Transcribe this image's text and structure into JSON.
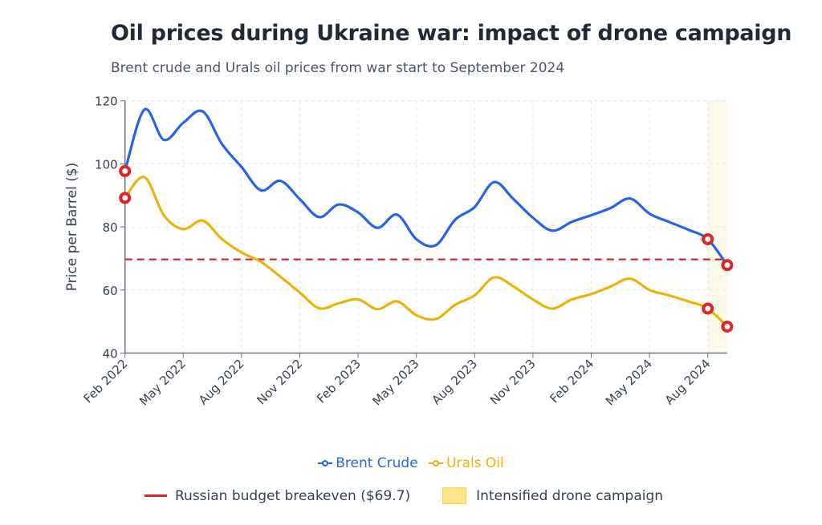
{
  "title": "Oil prices during Ukraine war: impact of drone campaign",
  "subtitle": "Brent crude and Urals oil prices from war start to September 2024",
  "chart_data": {
    "type": "line",
    "ylabel": "Price per Barrel ($)",
    "ylim": [
      40,
      120
    ],
    "yticks": [
      "40",
      "60",
      "80",
      "100",
      "120"
    ],
    "grid": true,
    "x": [
      "Feb 2022",
      "Mar 2022",
      "Apr 2022",
      "May 2022",
      "Jun 2022",
      "Jul 2022",
      "Aug 2022",
      "Sep 2022",
      "Oct 2022",
      "Nov 2022",
      "Dec 2022",
      "Jan 2023",
      "Feb 2023",
      "Mar 2023",
      "Apr 2023",
      "May 2023",
      "Jun 2023",
      "Jul 2023",
      "Aug 2023",
      "Sep 2023",
      "Oct 2023",
      "Nov 2023",
      "Dec 2023",
      "Jan 2024",
      "Feb 2024",
      "Mar 2024",
      "Apr 2024",
      "May 2024",
      "Jun 2024",
      "Jul 2024",
      "Aug 2024",
      "Sep 2024"
    ],
    "xticks": [
      "Feb 2022",
      "May 2022",
      "Aug 2022",
      "Nov 2022",
      "Feb 2023",
      "May 2023",
      "Aug 2023",
      "Nov 2023",
      "Feb 2024",
      "May 2024",
      "Aug 2024"
    ],
    "series": [
      {
        "name": "Brent Crude",
        "color": "#2563eb",
        "values": [
          97.7,
          117.2,
          107.6,
          113,
          116.6,
          106.2,
          99,
          91.6,
          94.6,
          88.8,
          83.1,
          87.1,
          84.6,
          79.7,
          83.9,
          76.1,
          74.2,
          82.3,
          86.3,
          94.2,
          88.8,
          82.9,
          78.8,
          81.6,
          83.7,
          86,
          89,
          84.2,
          81.6,
          79.1,
          76.1,
          67.9
        ]
      },
      {
        "name": "Urals Oil",
        "color": "#eab308",
        "values": [
          89.2,
          95.8,
          83.7,
          79.3,
          82,
          76.1,
          71.9,
          68.9,
          64.2,
          59.2,
          54.2,
          55.8,
          57,
          53.9,
          56.4,
          52,
          50.8,
          55.3,
          58.3,
          64,
          61.1,
          57,
          54.1,
          57,
          58.7,
          61.1,
          63.6,
          60,
          58.3,
          56.4,
          54.1,
          48.4
        ]
      }
    ],
    "highlight_points": [
      "Feb 2022",
      "Aug 2024",
      "Sep 2024"
    ],
    "highlight_color": "#dc2626",
    "reference_line": {
      "label": "Russian budget breakeven ($69.7)",
      "value": 69.7,
      "color": "#dc2626"
    },
    "shaded_region": {
      "label": "Intensified drone campaign",
      "from": "Aug 2024",
      "to": "Sep 2024",
      "color": "#fde68a"
    },
    "legend": "bottom"
  }
}
